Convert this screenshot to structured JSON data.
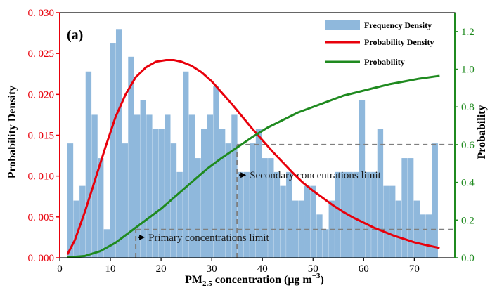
{
  "chart_data": {
    "type": "bar",
    "panel_label": "(a)",
    "xlabel": "PM2.5 concentration (μg m−3)",
    "xlabel_parts": {
      "main": "PM",
      "sub": "2.5",
      "rest": " concentration (μg m",
      "sup": "−3",
      "end": ")"
    },
    "ylabel_left": "Probability Density",
    "ylabel_right": "Probability",
    "xlim": [
      0,
      78
    ],
    "ylim_left": [
      0,
      0.03
    ],
    "ylim_right": [
      0,
      1.3
    ],
    "x_ticks": [
      "0",
      "10",
      "20",
      "30",
      "40",
      "50",
      "60",
      "70"
    ],
    "y_left_ticks": [
      "0. 000",
      "0. 005",
      "0. 010",
      "0. 015",
      "0. 020",
      "0. 025",
      "0. 030"
    ],
    "y_right_ticks": [
      "0.0",
      "0.2",
      "0.4",
      "0.6",
      "0.8",
      "1.0",
      "1.2"
    ],
    "colors": {
      "histogram": "#8fb8dc",
      "pdf": "#e8000b",
      "cdf": "#1f8a1f",
      "left_axis": "#e8000b",
      "right_axis": "#1f8a1f",
      "dashed": "#7f7f7f"
    },
    "legend": {
      "position": "top-right",
      "entries": [
        {
          "label": "Frequency Density",
          "kind": "patch",
          "color": "#8fb8dc"
        },
        {
          "label": "Probability Density",
          "kind": "line",
          "color": "#e8000b"
        },
        {
          "label": "Probability",
          "kind": "line",
          "color": "#1f8a1f"
        }
      ]
    },
    "histogram": {
      "name": "Frequency Density",
      "bin_width": 1.2,
      "bin_left_edges": [
        1.5,
        2.7,
        3.9,
        5.1,
        6.3,
        7.5,
        8.7,
        9.9,
        11.1,
        12.3,
        13.5,
        14.7,
        15.9,
        17.1,
        18.3,
        19.5,
        20.7,
        21.9,
        23.1,
        24.3,
        25.5,
        26.7,
        27.9,
        29.1,
        30.3,
        31.5,
        32.7,
        33.9,
        35.1,
        36.3,
        37.5,
        38.7,
        39.9,
        41.1,
        42.3,
        43.5,
        44.7,
        45.9,
        47.1,
        48.3,
        49.5,
        50.7,
        51.9,
        53.1,
        54.3,
        55.5,
        56.7,
        57.9,
        59.1,
        60.3,
        61.5,
        62.7,
        63.9,
        65.1,
        66.3,
        67.5,
        68.7,
        69.9,
        71.1,
        72.3,
        73.5
      ],
      "values": [
        0.014,
        0.007,
        0.0088,
        0.0228,
        0.0175,
        0.0122,
        0.0035,
        0.0263,
        0.028,
        0.014,
        0.0246,
        0.0175,
        0.0193,
        0.0175,
        0.0158,
        0.0158,
        0.0175,
        0.014,
        0.0105,
        0.0228,
        0.0175,
        0.0122,
        0.0158,
        0.0175,
        0.021,
        0.0158,
        0.014,
        0.0175,
        0.0105,
        0.0105,
        0.014,
        0.0158,
        0.0122,
        0.0122,
        0.0105,
        0.0088,
        0.0105,
        0.007,
        0.007,
        0.0088,
        0.0088,
        0.0053,
        0.0035,
        0.007,
        0.0105,
        0.0105,
        0.0105,
        0.0105,
        0.0193,
        0.0105,
        0.0105,
        0.0158,
        0.0088,
        0.0088,
        0.007,
        0.0122,
        0.0122,
        0.007,
        0.0053,
        0.0053,
        0.014
      ]
    },
    "pdf_curve": {
      "name": "Probability Density",
      "x": [
        1.5,
        3,
        5,
        7,
        9,
        11,
        13,
        15,
        17,
        19,
        21,
        22.5,
        24,
        26,
        28,
        30,
        32,
        34,
        36,
        38,
        40,
        42,
        44,
        46,
        48,
        50,
        52,
        54,
        56,
        58,
        60,
        62,
        64,
        66,
        68,
        70,
        72,
        75
      ],
      "y": [
        0.0004,
        0.0022,
        0.0057,
        0.0096,
        0.0135,
        0.0172,
        0.02,
        0.0221,
        0.0233,
        0.024,
        0.0242,
        0.0242,
        0.024,
        0.0235,
        0.0227,
        0.0216,
        0.0202,
        0.0188,
        0.0173,
        0.0158,
        0.0144,
        0.013,
        0.0117,
        0.0104,
        0.0092,
        0.0082,
        0.0073,
        0.0064,
        0.0056,
        0.0049,
        0.0043,
        0.0037,
        0.0032,
        0.0027,
        0.0023,
        0.0019,
        0.0016,
        0.0012
      ]
    },
    "cdf_curve": {
      "name": "Probability",
      "x": [
        1.5,
        5,
        8,
        11,
        14,
        17,
        20,
        23,
        26,
        29,
        32,
        35,
        38,
        41,
        44,
        47,
        50,
        53,
        56,
        59,
        62,
        65,
        68,
        71,
        75
      ],
      "y": [
        0.002,
        0.01,
        0.035,
        0.08,
        0.14,
        0.2,
        0.26,
        0.33,
        0.4,
        0.47,
        0.53,
        0.585,
        0.64,
        0.69,
        0.73,
        0.77,
        0.8,
        0.83,
        0.86,
        0.88,
        0.9,
        0.92,
        0.935,
        0.95,
        0.965
      ]
    },
    "reference_lines": [
      {
        "x": 15,
        "y_prob": 0.15,
        "label": "Primary concentrations limit",
        "label_x": 17.5,
        "label_y_prob": 0.09
      },
      {
        "x": 35,
        "y_prob": 0.6,
        "label": "Secondary concentrations limit",
        "label_x": 37.5,
        "label_y_prob": 0.42
      }
    ]
  }
}
